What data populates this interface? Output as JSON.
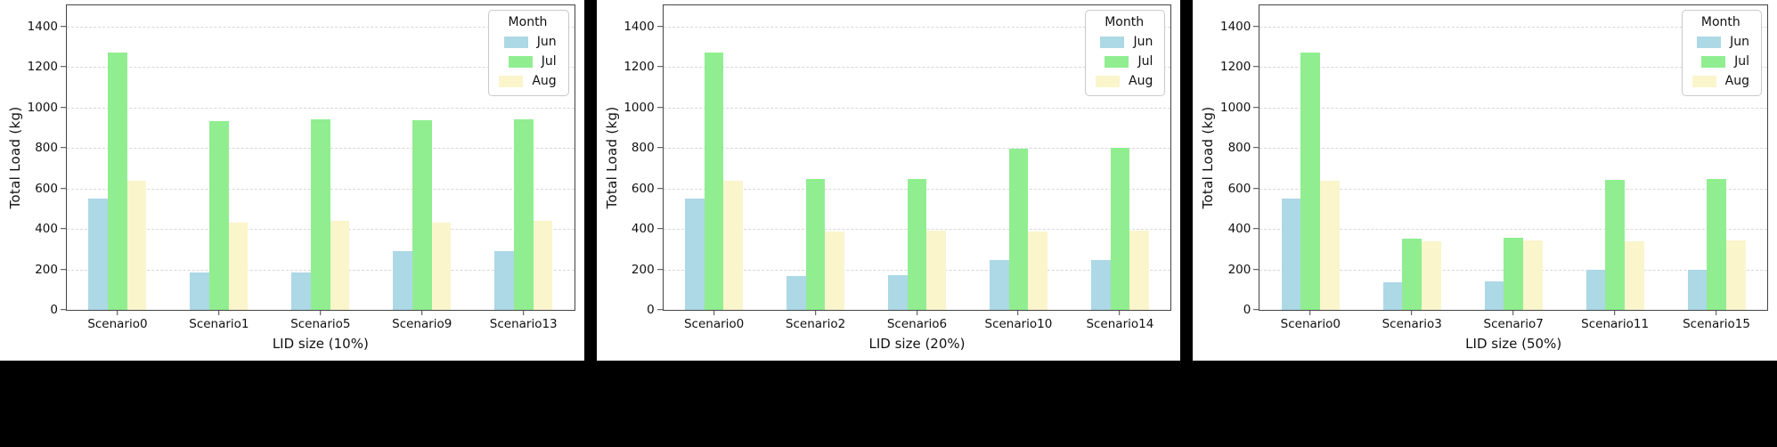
{
  "figure": {
    "background_color": "#000000",
    "panel_color": "#ffffff",
    "grid_color": "#d8d8d8",
    "spine_color": "#444444",
    "text_color": "#111111"
  },
  "legend": {
    "title": "Month",
    "entries": [
      {
        "label": "Jun",
        "color": "#ADD8E6"
      },
      {
        "label": "Jul",
        "color": "#90EE90"
      },
      {
        "label": "Aug",
        "color": "#FAF5CB"
      }
    ],
    "position": "upper right"
  },
  "chart_data": [
    {
      "type": "bar",
      "xlabel": "LID size (10%)",
      "ylabel": "Total Load (kg)",
      "categories": [
        "Scenario0",
        "Scenario1",
        "Scenario5",
        "Scenario9",
        "Scenario13"
      ],
      "series": [
        {
          "name": "Jun",
          "color": "#ADD8E6",
          "values": [
            550,
            185,
            185,
            290,
            290
          ]
        },
        {
          "name": "Jul",
          "color": "#90EE90",
          "values": [
            1272,
            935,
            940,
            938,
            942
          ]
        },
        {
          "name": "Aug",
          "color": "#FAF5CB",
          "values": [
            638,
            430,
            438,
            432,
            440
          ]
        }
      ],
      "yticks": [
        0,
        200,
        400,
        600,
        800,
        1000,
        1200,
        1400
      ],
      "ylim": [
        0,
        1505
      ],
      "grid": "horizontal-dashed",
      "legend_position": "upper right"
    },
    {
      "type": "bar",
      "xlabel": "LID size (20%)",
      "ylabel": "Total Load (kg)",
      "categories": [
        "Scenario0",
        "Scenario2",
        "Scenario6",
        "Scenario10",
        "Scenario14"
      ],
      "series": [
        {
          "name": "Jun",
          "color": "#ADD8E6",
          "values": [
            550,
            168,
            170,
            245,
            248
          ]
        },
        {
          "name": "Jul",
          "color": "#90EE90",
          "values": [
            1272,
            645,
            648,
            795,
            800
          ]
        },
        {
          "name": "Aug",
          "color": "#FAF5CB",
          "values": [
            638,
            388,
            392,
            388,
            392
          ]
        }
      ],
      "yticks": [
        0,
        200,
        400,
        600,
        800,
        1000,
        1200,
        1400
      ],
      "ylim": [
        0,
        1505
      ],
      "grid": "horizontal-dashed",
      "legend_position": "upper right"
    },
    {
      "type": "bar",
      "xlabel": "LID size (50%)",
      "ylabel": "Total Load (kg)",
      "categories": [
        "Scenario0",
        "Scenario3",
        "Scenario7",
        "Scenario11",
        "Scenario15"
      ],
      "series": [
        {
          "name": "Jun",
          "color": "#ADD8E6",
          "values": [
            550,
            138,
            142,
            196,
            200
          ]
        },
        {
          "name": "Jul",
          "color": "#90EE90",
          "values": [
            1272,
            352,
            355,
            644,
            648
          ]
        },
        {
          "name": "Aug",
          "color": "#FAF5CB",
          "values": [
            638,
            338,
            342,
            340,
            344
          ]
        }
      ],
      "yticks": [
        0,
        200,
        400,
        600,
        800,
        1000,
        1200,
        1400
      ],
      "ylim": [
        0,
        1505
      ],
      "grid": "horizontal-dashed",
      "legend_position": "upper right"
    }
  ]
}
